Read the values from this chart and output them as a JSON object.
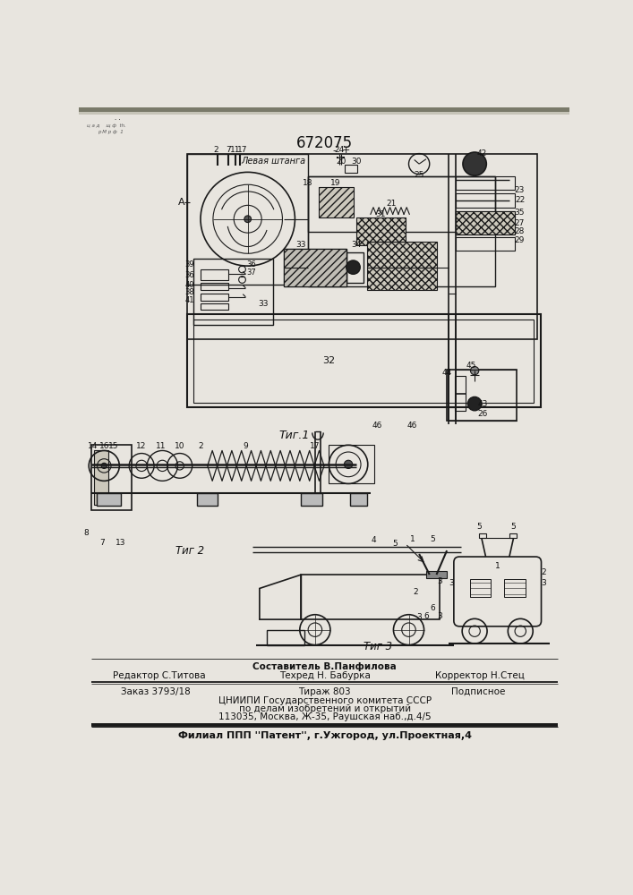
{
  "patent_number": "672075",
  "bg_color": "#e8e5df",
  "line_color": "#1a1a1a",
  "text_color": "#111111",
  "fig1_label": "Τиг.1",
  "fig2_label": "Τиг 2",
  "fig3_label": "Τиг 3",
  "levaya_shtanga": "Левая штанга",
  "editor_line": "Редактор С.Титова",
  "composer_line": "Составитель В.Панфилова",
  "techred_line": "Техред Н. Бабурка",
  "corrector_line": "Корректор Н.Стец",
  "order_line": "Заказ 3793/18",
  "tirazh_line": "Тираж 803",
  "podpisnoe": "Подписное",
  "cnipi_line": "ЦНИИПИ Государственного комитета СССР",
  "dela_line": "по делам изобретений и открытий",
  "address_line": "113035, Москва, Ж-35, Раушская наб.,д.4/5",
  "filial_line": "Филиал ППП ''Патент'', г.Ужгород, ул.Проектная,4"
}
